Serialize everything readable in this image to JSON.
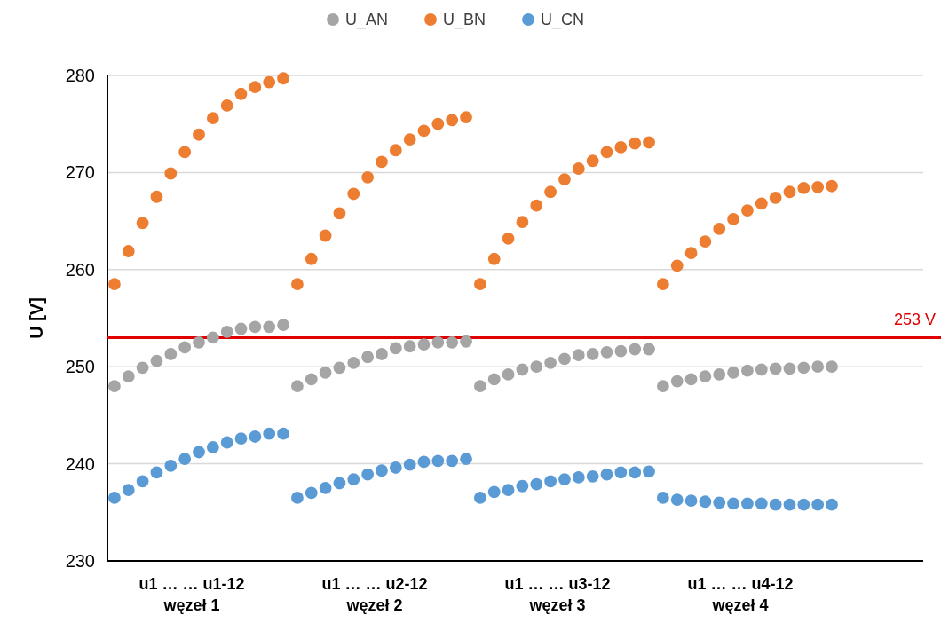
{
  "chart_data": {
    "type": "scatter",
    "ylabel": "U [V]",
    "marker": "circle",
    "legend": "top",
    "grid": "y",
    "tick_labels": "y",
    "categories": [
      null,
      null,
      null,
      null,
      null,
      null,
      null,
      null,
      null,
      null,
      null,
      null,
      null,
      null,
      null,
      null,
      null,
      null,
      null,
      null,
      null,
      null,
      null,
      null,
      null,
      null,
      null,
      null,
      null,
      null,
      null,
      null,
      null,
      null,
      null,
      null,
      null,
      null,
      null,
      null,
      null,
      null,
      null,
      null,
      null,
      null,
      null,
      null,
      null,
      null,
      null,
      null,
      null,
      null,
      null,
      null,
      null,
      null
    ],
    "ylim": [
      230,
      280
    ],
    "yticks": [
      230,
      240,
      250,
      260,
      270,
      280
    ],
    "series": [
      {
        "name": "U_AN",
        "color": "#a5a5a5",
        "values": [
          248.0,
          249.0,
          249.9,
          250.6,
          251.3,
          252.0,
          252.5,
          253.0,
          253.6,
          253.9,
          254.1,
          254.1,
          254.3,
          248.0,
          248.7,
          249.4,
          249.9,
          250.4,
          251.0,
          251.3,
          251.9,
          252.1,
          252.3,
          252.5,
          252.5,
          252.6,
          248.0,
          248.7,
          249.2,
          249.7,
          250.0,
          250.4,
          250.8,
          251.2,
          251.3,
          251.5,
          251.6,
          251.8,
          251.8,
          248.0,
          248.5,
          248.7,
          249.0,
          249.2,
          249.4,
          249.6,
          249.7,
          249.8,
          249.8,
          249.9,
          250.0,
          250.0,
          null,
          null,
          null,
          null,
          null,
          null
        ]
      },
      {
        "name": "U_BN",
        "color": "#ed7d31",
        "values": [
          258.5,
          261.9,
          264.8,
          267.5,
          269.9,
          272.1,
          273.9,
          275.6,
          276.9,
          278.1,
          278.8,
          279.3,
          279.7,
          258.5,
          261.1,
          263.5,
          265.8,
          267.8,
          269.5,
          271.1,
          272.3,
          273.4,
          274.3,
          275.0,
          275.4,
          275.7,
          258.5,
          261.1,
          263.2,
          264.9,
          266.6,
          268.0,
          269.3,
          270.4,
          271.2,
          272.1,
          272.6,
          273.0,
          273.1,
          258.5,
          260.4,
          261.7,
          262.9,
          264.2,
          265.2,
          266.1,
          266.8,
          267.4,
          268.0,
          268.4,
          268.5,
          268.6,
          null,
          null,
          null,
          null,
          null,
          null
        ]
      },
      {
        "name": "U_CN",
        "color": "#5b9bd5",
        "values": [
          236.5,
          237.3,
          238.2,
          239.1,
          239.8,
          240.5,
          241.2,
          241.7,
          242.2,
          242.6,
          242.8,
          243.1,
          243.1,
          236.5,
          237.0,
          237.5,
          238.0,
          238.4,
          238.9,
          239.3,
          239.6,
          239.9,
          240.2,
          240.3,
          240.3,
          240.5,
          236.5,
          237.1,
          237.3,
          237.7,
          237.9,
          238.2,
          238.4,
          238.6,
          238.7,
          238.9,
          239.1,
          239.1,
          239.2,
          236.5,
          236.3,
          236.2,
          236.1,
          236.0,
          235.9,
          235.9,
          235.9,
          235.8,
          235.8,
          235.8,
          235.8,
          235.8,
          null,
          null,
          null,
          null,
          null,
          null
        ]
      }
    ],
    "ref_lines": [
      {
        "axis": "y",
        "value": 253,
        "label": "253 V",
        "color": "#e00000"
      }
    ],
    "annotations": [
      "u1 … … u1-12\nwęzeł 1",
      "u1 … … u2-12\nwęzeł 2",
      "u1 … … u3-12\nwęzeł 3",
      "u1 … … u4-12\nwęzeł 4"
    ]
  }
}
